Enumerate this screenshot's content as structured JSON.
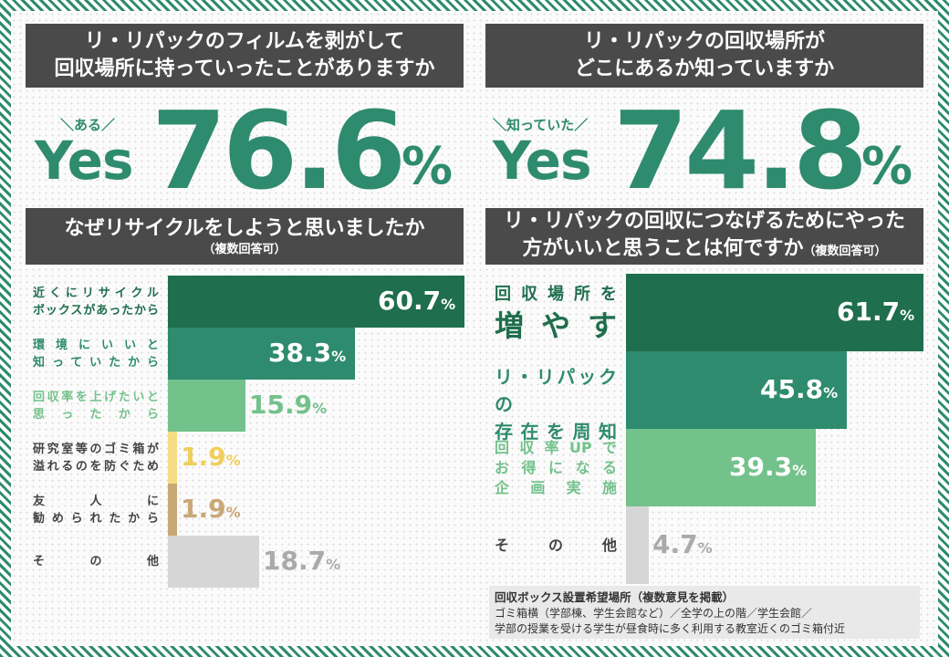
{
  "colors": {
    "dark_green": "#1f6e4e",
    "mid_green": "#2e8b6e",
    "light_green": "#73c18b",
    "yellow": "#f6dc85",
    "tan": "#c9a876",
    "gray": "#d6d6d6",
    "header_bg": "#4a4a4a"
  },
  "left": {
    "q1": {
      "line1": "リ・リパックのフィルムを剥がして",
      "line2": "回収場所に持っていったことがありますか",
      "tiny": "＼ある／",
      "yes": "Yes",
      "value": "76.6",
      "pct": "%"
    },
    "q3": {
      "line1": "なぜリサイクルをしようと思いましたか",
      "sub": "（複数回答可）"
    }
  },
  "right": {
    "q2": {
      "line1": "リ・リパックの回収場所が",
      "line2": "どこにあるか知っていますか",
      "tiny": "＼知っていた／",
      "yes": "Yes",
      "value": "74.8",
      "pct": "%"
    },
    "q4": {
      "line1": "リ・リパックの回収につなげるためにやった",
      "line2": "方がいいと思うことは何ですか",
      "sub": "（複数回答可）"
    }
  },
  "chart_data": [
    {
      "type": "bar",
      "orientation": "horizontal",
      "title": "なぜリサイクルをしようと思いましたか（複数回答可）",
      "categories": [
        [
          "近くにリサイクル",
          "ボックスがあったから"
        ],
        [
          "環境にいいと",
          "知っていたから"
        ],
        [
          "回収率を上げたいと",
          "思ったから"
        ],
        [
          "研究室等のゴミ箱が",
          "溢れるのを防ぐため"
        ],
        [
          "友人に",
          "勧められたから"
        ],
        [
          "その他"
        ]
      ],
      "values": [
        60.7,
        38.3,
        15.9,
        1.9,
        1.9,
        18.7
      ],
      "value_labels": [
        "60.7",
        "38.3",
        "15.9",
        "1.9",
        "1.9",
        "18.7"
      ],
      "unit": "%",
      "bar_colors": [
        "#1f6e4e",
        "#2e8b6e",
        "#73c18b",
        "#f6dc85",
        "#c9a876",
        "#d6d6d6"
      ],
      "label_colors": [
        "#1f6e4e",
        "#2e8b6e",
        "#73c18b",
        "#444444",
        "#444444",
        "#444444"
      ],
      "value_colors": [
        "#ffffff",
        "#ffffff",
        "#73c18b",
        "#f0cf5a",
        "#c9a876",
        "#aaaaaa"
      ],
      "max": 60.7
    },
    {
      "type": "bar",
      "orientation": "horizontal",
      "title": "リ・リパックの回収につなげるためにやった方がいいと思うことは何ですか（複数回答可）",
      "categories": [
        [
          "回収場所を",
          "増やす"
        ],
        [
          "リ・リパックの",
          "存在を周知"
        ],
        [
          "回収率UPで",
          "お得になる",
          "企画実施"
        ],
        [
          "その他"
        ]
      ],
      "values": [
        61.7,
        45.8,
        39.3,
        4.7
      ],
      "value_labels": [
        "61.7",
        "45.8",
        "39.3",
        "4.7"
      ],
      "unit": "%",
      "bar_colors": [
        "#1f6e4e",
        "#2e8b6e",
        "#73c18b",
        "#d6d6d6"
      ],
      "label_colors": [
        "#1f6e4e",
        "#2e8b6e",
        "#73c18b",
        "#444444"
      ],
      "value_colors": [
        "#ffffff",
        "#ffffff",
        "#ffffff",
        "#aaaaaa"
      ],
      "max": 61.7
    }
  ],
  "note": {
    "title": "回収ボックス設置希望場所（複数意見を掲載）",
    "line1": "ゴミ箱横（学部棟、学生会館など）／全学の上の階／学生会館／",
    "line2": "学部の授業を受ける学生が昼食時に多く利用する教室近くのゴミ箱付近"
  }
}
